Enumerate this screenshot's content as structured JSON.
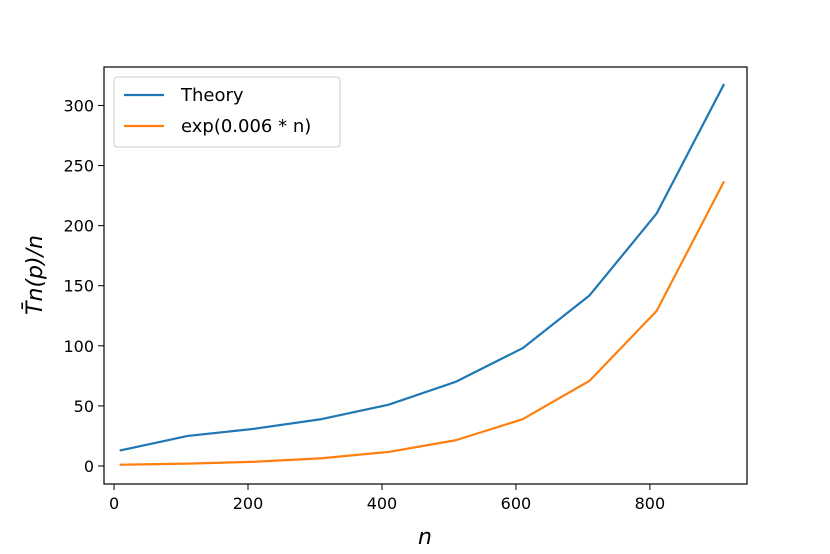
{
  "chart_data": {
    "type": "line",
    "title": "",
    "xlabel": "n",
    "ylabel": "T̄n(p)/n",
    "xlim": [
      -15,
      945
    ],
    "ylim": [
      -15,
      332
    ],
    "x_ticks": [
      0,
      200,
      400,
      600,
      800
    ],
    "y_ticks": [
      0,
      50,
      100,
      150,
      200,
      250,
      300
    ],
    "x_tick_labels": [
      "0",
      "200",
      "400",
      "600",
      "800"
    ],
    "y_tick_labels": [
      "0",
      "50",
      "100",
      "150",
      "200",
      "250",
      "300"
    ],
    "grid": false,
    "legend_position": "top-left",
    "x": [
      10,
      110,
      210,
      310,
      410,
      510,
      610,
      710,
      810,
      910
    ],
    "series": [
      {
        "name": "Theory",
        "color": "#1f77b4",
        "values": [
          13,
          25,
          31,
          39,
          51,
          70,
          98,
          142,
          210,
          317
        ]
      },
      {
        "name": "exp(0.006 * n)",
        "color": "#ff7f0e",
        "values": [
          1.06,
          1.93,
          3.53,
          6.43,
          11.7,
          21.4,
          38.9,
          70.9,
          129,
          236
        ]
      }
    ]
  }
}
